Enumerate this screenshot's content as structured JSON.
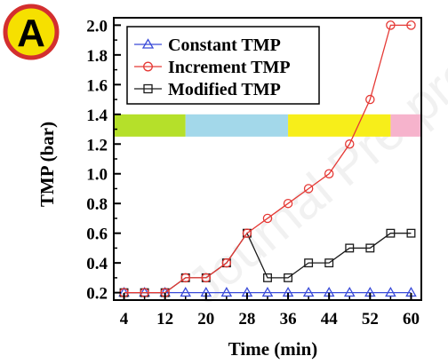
{
  "badge": {
    "letter": "A",
    "ring_color": "#d32f2f",
    "fill_color": "#f6e000"
  },
  "watermark": "Journal Pre-proofs",
  "chart_data": {
    "type": "line",
    "title": "",
    "xlabel": "Time (min)",
    "ylabel": "TMP (bar)",
    "xlim": [
      2,
      62
    ],
    "ylim": [
      0.15,
      2.05
    ],
    "x_ticks": [
      4,
      12,
      20,
      28,
      36,
      44,
      52,
      60
    ],
    "y_ticks": [
      0.2,
      0.4,
      0.6,
      0.8,
      1.0,
      1.2,
      1.4,
      1.6,
      1.8,
      2.0
    ],
    "y_tick_labels": [
      "0.2",
      "0.4",
      "0.6",
      "0.8",
      "1.0",
      "1.2",
      "1.4",
      "1.6",
      "1.8",
      "2.0"
    ],
    "x_tick_labels": [
      "4",
      "12",
      "20",
      "28",
      "36",
      "44",
      "52",
      "60"
    ],
    "grid": false,
    "legend_position": "top-left",
    "series": [
      {
        "name": "Constant TMP",
        "color": "#3a4bd8",
        "marker": "triangle",
        "x": [
          4,
          8,
          12,
          16,
          20,
          24,
          28,
          32,
          36,
          40,
          44,
          48,
          52,
          56,
          60
        ],
        "values": [
          0.2,
          0.2,
          0.2,
          0.2,
          0.2,
          0.2,
          0.2,
          0.2,
          0.2,
          0.2,
          0.2,
          0.2,
          0.2,
          0.2,
          0.2
        ]
      },
      {
        "name": "Increment TMP",
        "color": "#e53935",
        "marker": "circle",
        "x": [
          4,
          8,
          12,
          16,
          20,
          24,
          28,
          32,
          36,
          40,
          44,
          48,
          52,
          56,
          60
        ],
        "values": [
          0.2,
          0.2,
          0.2,
          0.3,
          0.3,
          0.4,
          0.6,
          0.7,
          0.8,
          0.9,
          1.0,
          1.2,
          1.5,
          2.0,
          2.0
        ]
      },
      {
        "name": "Modified TMP",
        "color": "#1a1a1a",
        "marker": "square",
        "x": [
          4,
          8,
          12,
          16,
          20,
          24,
          28,
          32,
          36,
          40,
          44,
          48,
          52,
          56,
          60
        ],
        "values": [
          0.2,
          0.2,
          0.2,
          0.3,
          0.3,
          0.4,
          0.6,
          0.3,
          0.3,
          0.4,
          0.4,
          0.5,
          0.5,
          0.6,
          0.6
        ]
      }
    ],
    "phase_bands": {
      "y_range": [
        1.25,
        1.4
      ],
      "bands": [
        {
          "x_range": [
            2,
            16
          ],
          "color": "#b5e02a"
        },
        {
          "x_range": [
            16,
            36
          ],
          "color": "#a3d8ea"
        },
        {
          "x_range": [
            36,
            56
          ],
          "color": "#f7ee1a"
        },
        {
          "x_range": [
            56,
            62
          ],
          "color": "#f6b3cc"
        }
      ]
    }
  }
}
